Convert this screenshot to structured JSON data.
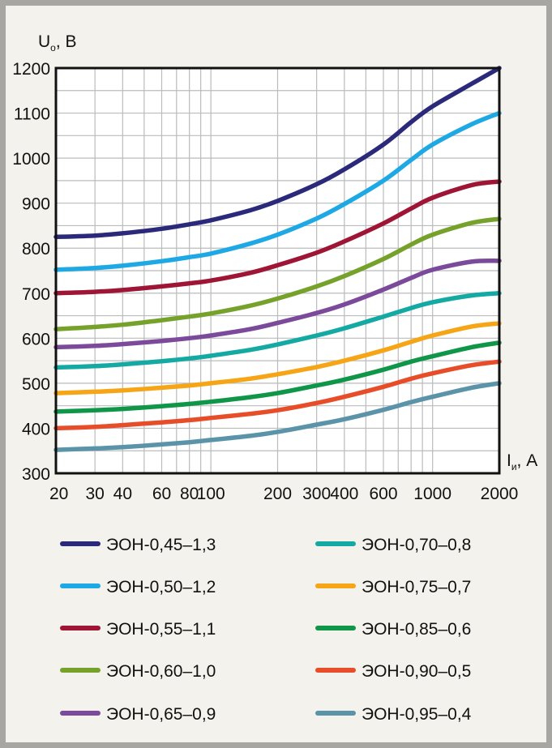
{
  "chart_data": {
    "type": "line",
    "xscale": "log",
    "xlim": [
      20,
      2000
    ],
    "ylim": [
      300,
      1200
    ],
    "xticks": [
      20,
      30,
      40,
      60,
      80,
      100,
      200,
      300,
      400,
      600,
      1000,
      2000
    ],
    "xtick_labels": [
      "20",
      "30",
      "40",
      "60",
      "80",
      "100",
      "200",
      "300",
      "400",
      "600",
      "1000",
      "2000"
    ],
    "yticks": [
      300,
      400,
      500,
      600,
      700,
      800,
      900,
      1000,
      1100,
      1200
    ],
    "ytick_labels": [
      "300",
      "400",
      "500",
      "600",
      "700",
      "800",
      "900",
      "1000",
      "1100",
      "1200"
    ],
    "ylabel": {
      "main": "U",
      "sub": "о",
      "unit": ", В"
    },
    "xlabel": {
      "main": "I",
      "sub": "и",
      "unit": ", А"
    },
    "grid": true,
    "legend_position": "bottom",
    "x": [
      20,
      30,
      40,
      60,
      80,
      100,
      150,
      200,
      300,
      400,
      600,
      800,
      1000,
      1500,
      2000
    ],
    "series": [
      {
        "name": "ЭОН-0,45–1,3",
        "color": "#2b2a7a",
        "values": [
          825,
          828,
          833,
          843,
          853,
          862,
          884,
          905,
          942,
          975,
          1030,
          1080,
          1115,
          1165,
          1200
        ]
      },
      {
        "name": "ЭОН-0,50–1,2",
        "color": "#1ea9e5",
        "values": [
          752,
          756,
          761,
          771,
          780,
          788,
          810,
          830,
          866,
          898,
          950,
          996,
          1030,
          1075,
          1100
        ]
      },
      {
        "name": "ЭОН-0,55–1,1",
        "color": "#9e1535",
        "values": [
          700,
          703,
          707,
          715,
          722,
          728,
          745,
          762,
          790,
          815,
          855,
          888,
          912,
          940,
          948
        ]
      },
      {
        "name": "ЭОН-0,60–1,0",
        "color": "#76a22c",
        "values": [
          620,
          625,
          630,
          640,
          648,
          655,
          672,
          688,
          715,
          738,
          776,
          808,
          830,
          856,
          865
        ]
      },
      {
        "name": "ЭОН-0,65–0,9",
        "color": "#7c4a9a",
        "values": [
          580,
          583,
          587,
          594,
          600,
          606,
          620,
          634,
          656,
          675,
          708,
          734,
          752,
          770,
          772
        ]
      },
      {
        "name": "ЭОН-0,70–0,8",
        "color": "#14aaa3",
        "values": [
          535,
          538,
          542,
          549,
          555,
          561,
          574,
          586,
          606,
          622,
          648,
          667,
          680,
          695,
          700
        ]
      },
      {
        "name": "ЭОН-0,75–0,7",
        "color": "#f5a516",
        "values": [
          478,
          481,
          484,
          490,
          495,
          500,
          510,
          520,
          536,
          550,
          573,
          592,
          606,
          626,
          633
        ]
      },
      {
        "name": "ЭОН-0,85–0,6",
        "color": "#109648",
        "values": [
          437,
          440,
          443,
          449,
          454,
          459,
          469,
          478,
          495,
          508,
          530,
          548,
          560,
          580,
          590
        ]
      },
      {
        "name": "ЭОН-0,90–0,5",
        "color": "#e84d2a",
        "values": [
          400,
          403,
          407,
          413,
          418,
          423,
          432,
          440,
          456,
          470,
          492,
          510,
          522,
          540,
          548
        ]
      },
      {
        "name": "ЭОН-0,95–0,4",
        "color": "#5b93a9",
        "values": [
          352,
          355,
          358,
          364,
          369,
          374,
          383,
          392,
          408,
          420,
          441,
          458,
          470,
          490,
          500
        ]
      }
    ]
  }
}
